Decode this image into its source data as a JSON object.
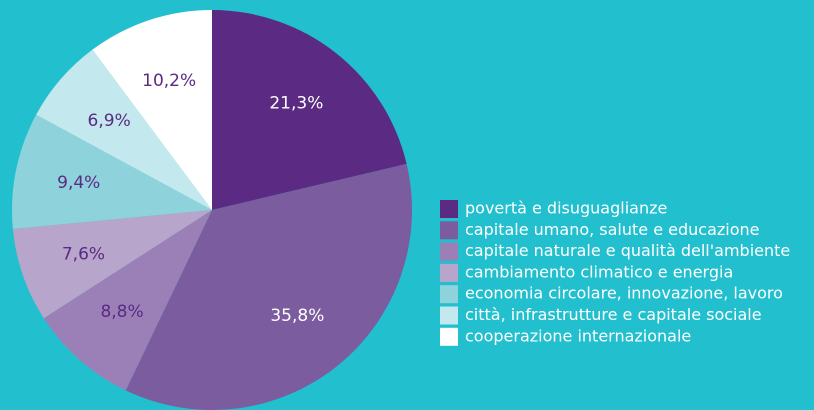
{
  "chart_data": {
    "type": "pie",
    "categories": [
      "povertà e disuguaglianze",
      "capitale umano, salute e educazione",
      "capitale naturale e qualità dell'ambiente",
      "cambiamento climatico e energia",
      "economia circolare, innovazione, lavoro",
      "città, infrastrutture e capitale sociale",
      "cooperazione internazionale"
    ],
    "values": [
      21.3,
      35.8,
      8.8,
      7.6,
      9.4,
      6.9,
      10.2
    ],
    "value_labels": [
      "21,3%",
      "35,8%",
      "8,8%",
      "7,6%",
      "9,4%",
      "6,9%",
      "10,2%"
    ],
    "colors": [
      "#5b2a82",
      "#7b5c9f",
      "#9a80b6",
      "#b7a5cb",
      "#8ed2dc",
      "#c3e8ee",
      "#ffffff"
    ],
    "label_colors": [
      "#ffffff",
      "#ffffff",
      "#5b2a82",
      "#5b2a82",
      "#5b2a82",
      "#5b2a82",
      "#5b2a82"
    ],
    "legend": "right"
  }
}
